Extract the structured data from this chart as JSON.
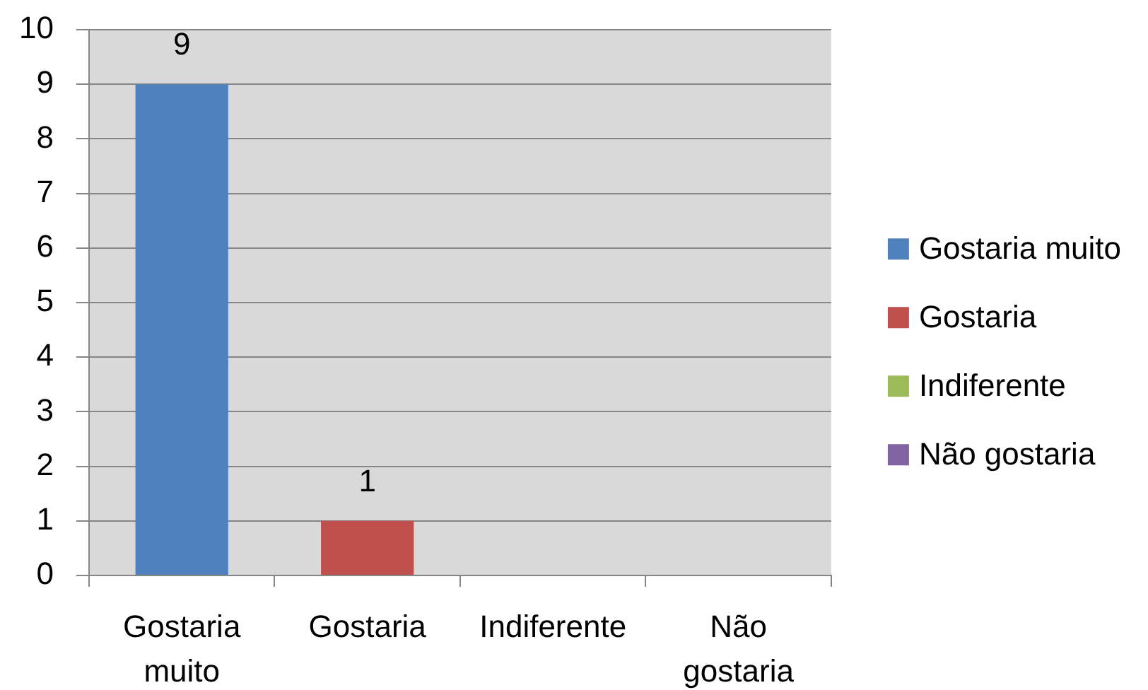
{
  "chart_data": {
    "type": "bar",
    "categories": [
      "Gostaria muito",
      "Gostaria",
      "Indiferente",
      "Não gostaria"
    ],
    "series": [
      {
        "name": "Gostaria muito",
        "color": "#4f81bd",
        "values": [
          9,
          null,
          null,
          null
        ],
        "value_labels": [
          "9",
          null,
          null,
          null
        ]
      },
      {
        "name": "Gostaria",
        "color": "#c0504d",
        "values": [
          null,
          1,
          null,
          null
        ],
        "value_labels": [
          null,
          "1",
          null,
          null
        ]
      },
      {
        "name": "Indiferente",
        "color": "#9bbb59",
        "values": [
          null,
          null,
          0,
          null
        ]
      },
      {
        "name": "Não gostaria",
        "color": "#8064a2",
        "values": [
          null,
          null,
          null,
          0
        ]
      }
    ],
    "ylim": [
      0,
      10
    ],
    "yticks": [
      0,
      1,
      2,
      3,
      4,
      5,
      6,
      7,
      8,
      9,
      10
    ],
    "grid": "y",
    "legend": "right"
  }
}
